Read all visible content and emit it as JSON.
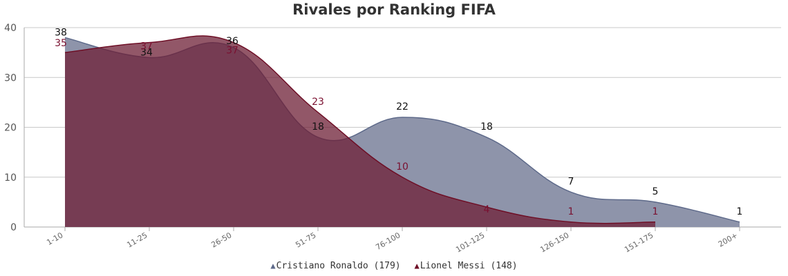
{
  "chart_data": {
    "type": "area",
    "title": "Rivales por Ranking FIFA",
    "xlabel": "",
    "ylabel": "",
    "ylim": [
      0,
      40
    ],
    "yticks": [
      0,
      10,
      20,
      30,
      40
    ],
    "grid": true,
    "legend_position": "bottom",
    "categories": [
      "1-10",
      "11-25",
      "26-50",
      "51-75",
      "76-100",
      "101-125",
      "126-150",
      "151-175",
      "200+"
    ],
    "series": [
      {
        "name": "Cristiano Ronaldo (179)",
        "values": [
          38,
          34,
          36,
          18,
          22,
          18,
          7,
          5,
          1
        ],
        "color": "#5e6a8a",
        "fill": "#8e94aa",
        "label_color": "#111111"
      },
      {
        "name": "Lionel Messi (148)",
        "values": [
          35,
          37,
          37,
          23,
          10,
          4,
          1,
          1,
          null
        ],
        "color": "#6e0f26",
        "fill": "#6e1f35",
        "label_color": "#7a1030"
      }
    ]
  }
}
